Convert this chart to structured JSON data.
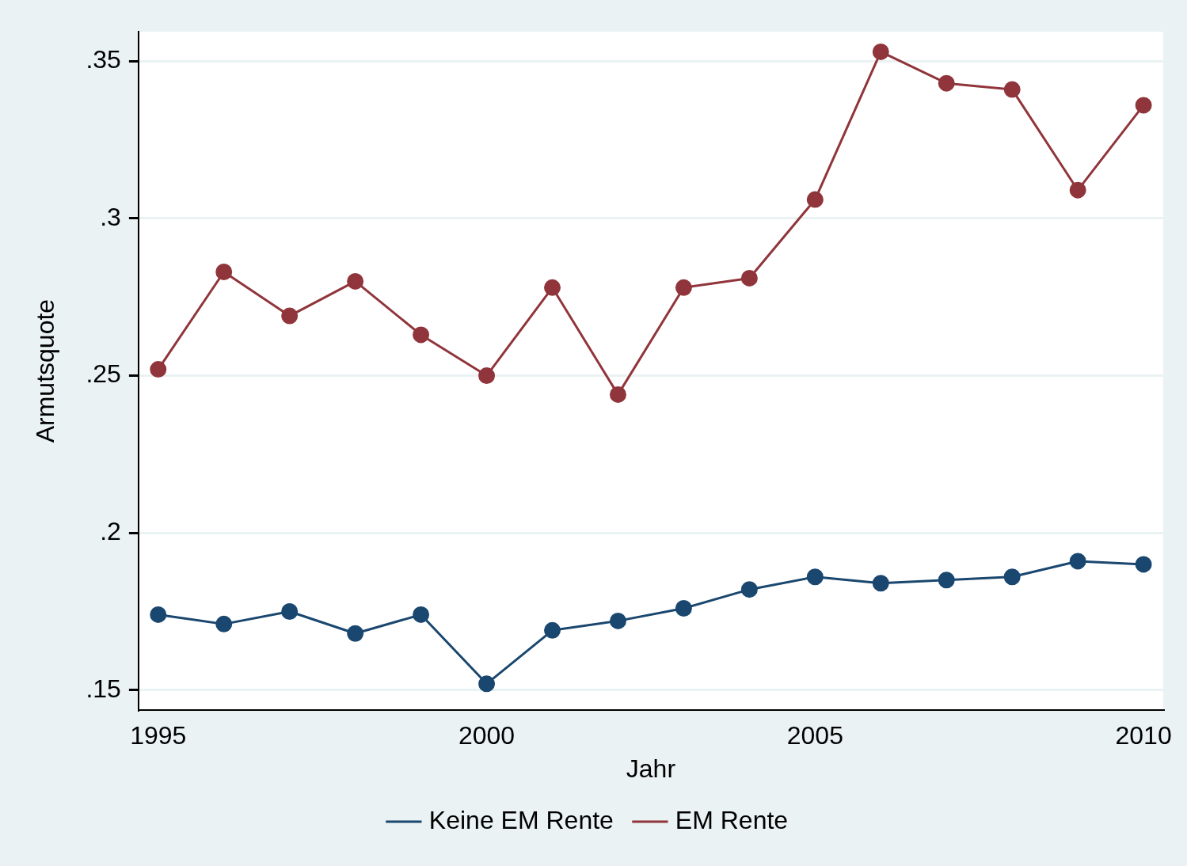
{
  "chart_data": {
    "type": "line",
    "xlabel": "Jahr",
    "ylabel": "Armutsquote",
    "x": [
      1995,
      1996,
      1997,
      1998,
      1999,
      2000,
      2001,
      2002,
      2003,
      2004,
      2005,
      2006,
      2007,
      2008,
      2009,
      2010
    ],
    "series": [
      {
        "name": "Keine EM Rente",
        "color": "#1a476f",
        "values": [
          0.174,
          0.171,
          0.175,
          0.168,
          0.174,
          0.152,
          0.169,
          0.172,
          0.176,
          0.182,
          0.186,
          0.184,
          0.185,
          0.186,
          0.191,
          0.19
        ]
      },
      {
        "name": "EM Rente",
        "color": "#90353b",
        "values": [
          0.252,
          0.283,
          0.269,
          0.28,
          0.263,
          0.25,
          0.278,
          0.244,
          0.278,
          0.281,
          0.306,
          0.353,
          0.343,
          0.341,
          0.309,
          0.336
        ]
      }
    ],
    "xlim": [
      1994.7,
      2010.3
    ],
    "ylim": [
      0.1436,
      0.3594
    ],
    "xticks": [
      1995,
      2000,
      2005,
      2010
    ],
    "yticks": [
      {
        "value": 0.15,
        "label": ".15"
      },
      {
        "value": 0.2,
        "label": ".2"
      },
      {
        "value": 0.25,
        "label": ".25"
      },
      {
        "value": 0.3,
        "label": ".3"
      },
      {
        "value": 0.35,
        "label": ".35"
      }
    ],
    "grid": "y",
    "legend": "bottom",
    "marker": "circle",
    "line_style": "solid"
  }
}
